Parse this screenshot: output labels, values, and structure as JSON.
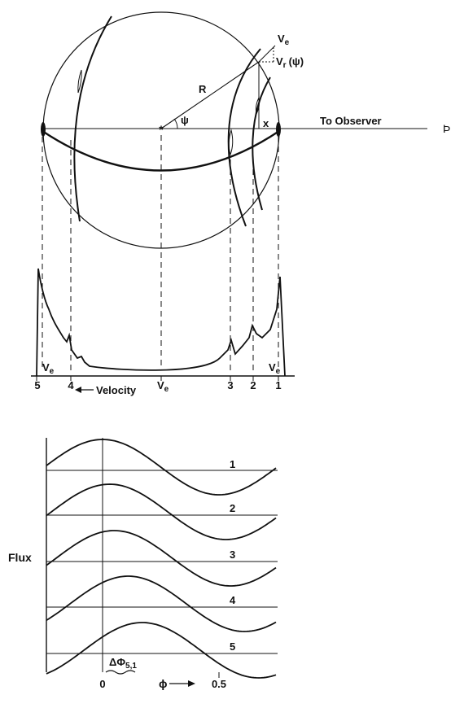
{
  "star_diagram": {
    "velocity_vector_label": "V",
    "velocity_vector_sub": "e",
    "radial_velocity_label": "V",
    "radial_velocity_sub": "r",
    "radial_velocity_arg": "(ψ)",
    "radius_label": "R",
    "angle_label": "ψ",
    "x_label": "x",
    "to_observer_label": "To Observer",
    "observer_symbol": "Þ"
  },
  "line_profile": {
    "left_edge_label": "V",
    "left_edge_sub": "e",
    "center_label": "V",
    "center_sub": "e",
    "right_edge_label": "V",
    "right_edge_sub": "e",
    "features": [
      "5",
      "4",
      "3",
      "2",
      "1"
    ],
    "velocity_axis_label": "Velocity"
  },
  "flux_panel": {
    "ylabel": "Flux",
    "xlabel": "ϕ",
    "x_ticks": [
      "0",
      "0.5"
    ],
    "curve_labels": [
      "1",
      "2",
      "3",
      "4",
      "5"
    ],
    "phase_shift_label": "ΔΦ",
    "phase_shift_sub": "5,1"
  },
  "chart_data": {
    "type": "line",
    "xlabel": "ϕ",
    "ylabel": "Flux",
    "series": [
      {
        "name": "1",
        "peak_phase": 0.0
      },
      {
        "name": "2",
        "peak_phase": 0.03
      },
      {
        "name": "3",
        "peak_phase": 0.05
      },
      {
        "name": "4",
        "peak_phase": 0.11
      },
      {
        "name": "5",
        "peak_phase": 0.17
      }
    ]
  }
}
